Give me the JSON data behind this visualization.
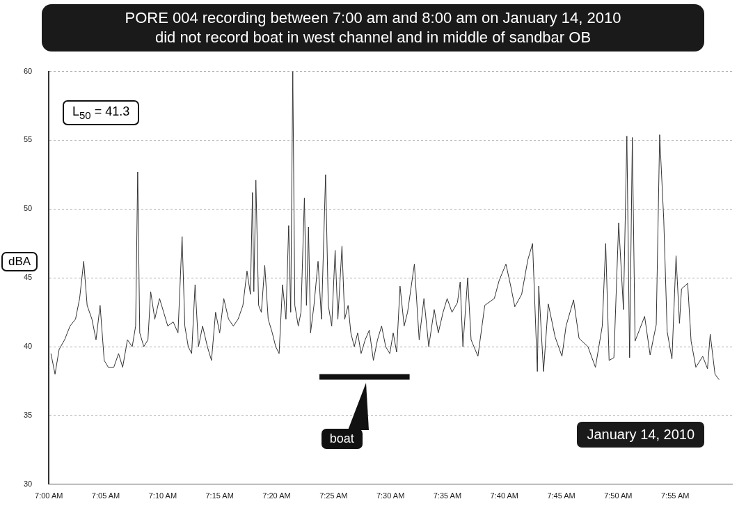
{
  "chart_data": {
    "type": "line",
    "title": "PORE 004 recording between 7:00 am and 8:00 am on January 14, 2010\ndid not record boat in west channel and in middle of sandbar OB",
    "ylabel": "dBA",
    "annotations": [
      "L$_{50}$ = 41.3",
      "January 14, 2010"
    ],
    "x": [
      7.003,
      7.009,
      7.015,
      7.023,
      7.031,
      7.039,
      7.045,
      7.051,
      7.056,
      7.063,
      7.069,
      7.075,
      7.081,
      7.087,
      7.095,
      7.102,
      7.108,
      7.115,
      7.122,
      7.127,
      7.13,
      7.133,
      7.139,
      7.145,
      7.149,
      7.155,
      7.162,
      7.168,
      7.174,
      7.182,
      7.189,
      7.195,
      7.199,
      7.204,
      7.209,
      7.214,
      7.219,
      7.225,
      7.232,
      7.238,
      7.244,
      7.25,
      7.256,
      7.263,
      7.27,
      7.277,
      7.284,
      7.29,
      7.295,
      7.298,
      7.3,
      7.303,
      7.307,
      7.311,
      7.316,
      7.321,
      7.327,
      7.332,
      7.337,
      7.342,
      7.347,
      7.351,
      7.354,
      7.357,
      7.36,
      7.365,
      7.369,
      7.374,
      7.377,
      7.38,
      7.383,
      7.388,
      7.394,
      7.399,
      7.405,
      7.409,
      7.414,
      7.419,
      7.423,
      7.429,
      7.433,
      7.438,
      7.442,
      7.447,
      7.452,
      7.457,
      7.463,
      7.469,
      7.475,
      7.481,
      7.487,
      7.493,
      7.499,
      7.504,
      7.509,
      7.514,
      7.52,
      7.525,
      7.535,
      7.542,
      7.549,
      7.556,
      7.564,
      7.57,
      7.577,
      7.583,
      7.59,
      7.598,
      7.602,
      7.606,
      7.613,
      7.618,
      7.628,
      7.638,
      7.652,
      7.659,
      7.669,
      7.676,
      7.682,
      7.692,
      7.701,
      7.708,
      7.715,
      7.717,
      7.724,
      7.731,
      7.741,
      7.751,
      7.757,
      7.768,
      7.776,
      7.789,
      7.8,
      7.81,
      7.815,
      7.82,
      7.827,
      7.834,
      7.841,
      7.846,
      7.85,
      7.854,
      7.858,
      7.872,
      7.88,
      7.889,
      7.894,
      7.9,
      7.905,
      7.912,
      7.918,
      7.923,
      7.926,
      7.935,
      7.94,
      7.947,
      7.957,
      7.964,
      7.968,
      7.975,
      7.981
    ],
    "series": [
      {
        "color": "#333333",
        "values": [
          39.5,
          38,
          39.8,
          40.5,
          41.5,
          42,
          43.5,
          46.2,
          43,
          42,
          40.5,
          43,
          39,
          38.5,
          38.5,
          39.5,
          38.5,
          40.5,
          40,
          41.5,
          52.7,
          41,
          40,
          40.5,
          44,
          42,
          43.5,
          42.5,
          41.5,
          41.8,
          41,
          48,
          41.5,
          40,
          39.5,
          44.5,
          40,
          41.5,
          40,
          39,
          42.5,
          41,
          43.5,
          42,
          41.5,
          42,
          43,
          45.5,
          43.8,
          51.2,
          44,
          52.1,
          43,
          42.5,
          45.9,
          42,
          41,
          40,
          39.5,
          44.5,
          42,
          48.8,
          42.5,
          60,
          43,
          41.5,
          42.5,
          50.8,
          43,
          48.7,
          41,
          43,
          46.2,
          42,
          52.5,
          43,
          41.5,
          47,
          42,
          47.3,
          42,
          43,
          41,
          40,
          41,
          39.5,
          40.5,
          41.2,
          39,
          40.5,
          41.5,
          40,
          39.5,
          41,
          39.6,
          44.4,
          41.5,
          42.5,
          46,
          40.5,
          43.5,
          40,
          42.7,
          41,
          42.5,
          43.5,
          42.5,
          43.2,
          44.7,
          40,
          45,
          40.5,
          39.3,
          43,
          43.5,
          44.8,
          46,
          44.4,
          42.9,
          43.8,
          46.3,
          47.5,
          38.2,
          44.4,
          38.2,
          43.1,
          40.7,
          39.3,
          41.5,
          43.4,
          40.6,
          40,
          38.5,
          41.5,
          47.5,
          39,
          39.2,
          49,
          42.7,
          55.3,
          39.2,
          55.2,
          40.4,
          42.2,
          39.4,
          41.6,
          55.4,
          49.2,
          41.1,
          39.1,
          46.6,
          41.7,
          44.2,
          44.6,
          40.4,
          38.5,
          39.3,
          38.4,
          40.9,
          38,
          37.6
        ]
      },
      {
        "name": "boat",
        "color": "#111111",
        "x": [
          7.396,
          7.528
        ],
        "values": [
          37.8,
          37.8
        ]
      }
    ],
    "xlim": [
      7,
      8
    ],
    "xticks": [
      {
        "value": 7,
        "label": "7:00 AM"
      },
      {
        "value": 7.0833,
        "label": "7:05 AM"
      },
      {
        "value": 7.1667,
        "label": "7:10 AM"
      },
      {
        "value": 7.25,
        "label": "7:15 AM"
      },
      {
        "value": 7.3333,
        "label": "7:20 AM"
      },
      {
        "value": 7.4167,
        "label": "7:25 AM"
      },
      {
        "value": 7.5,
        "label": "7:30 AM"
      },
      {
        "value": 7.5833,
        "label": "7:35 AM"
      },
      {
        "value": 7.6667,
        "label": "7:40 AM"
      },
      {
        "value": 7.75,
        "label": "7:45 AM"
      },
      {
        "value": 7.8333,
        "label": "7:50 AM"
      },
      {
        "value": 7.9167,
        "label": "7:55 AM"
      }
    ],
    "ylim": [
      30,
      60
    ],
    "yticks": [
      30,
      35,
      40,
      45,
      50,
      55,
      60
    ],
    "grid": "y",
    "marker": "none",
    "line_style": "solid"
  }
}
